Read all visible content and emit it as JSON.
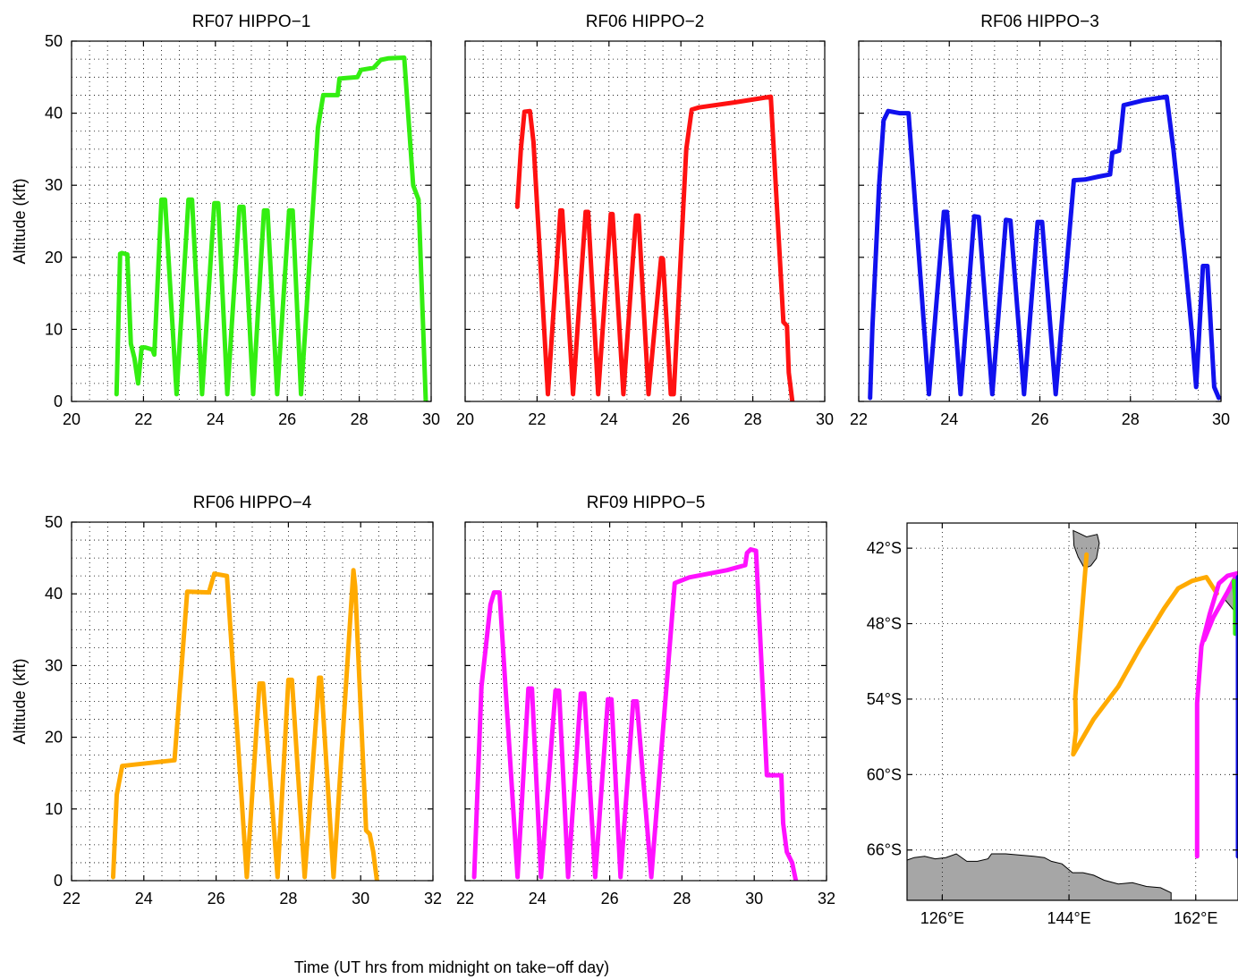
{
  "figure": {
    "xlabel": "Time (UT hrs from midnight on take−off day)"
  },
  "chart_data": [
    {
      "type": "line",
      "title": "RF07 HIPPO−1",
      "xlabel": "",
      "ylabel": "Altitude (kft)",
      "xlim": [
        20,
        30
      ],
      "ylim": [
        0,
        50
      ],
      "grid": true,
      "xticks": [
        "20",
        "22",
        "24",
        "26",
        "28",
        "30"
      ],
      "yticks": [
        "0",
        "10",
        "20",
        "30",
        "40",
        "50"
      ],
      "series": [
        {
          "color": "#33ee11",
          "x": [
            21.25,
            21.35,
            21.4,
            21.55,
            21.65,
            21.75,
            21.85,
            21.95,
            22.05,
            22.25,
            22.3,
            22.5,
            22.6,
            22.92,
            23.25,
            23.35,
            23.63,
            23.97,
            24.08,
            24.33,
            24.67,
            24.78,
            25.05,
            25.35,
            25.45,
            25.72,
            26.05,
            26.15,
            26.38,
            26.5,
            26.75,
            26.85,
            27.0,
            27.3,
            27.4,
            27.45,
            27.95,
            28.05,
            28.4,
            28.6,
            28.8,
            29.25,
            29.5,
            29.65,
            29.85
          ],
          "y": [
            1,
            20.5,
            20.6,
            20.4,
            8,
            6,
            2.5,
            7.5,
            7.5,
            7.2,
            6.5,
            28,
            28,
            1,
            28,
            28,
            1,
            27.5,
            27.5,
            1,
            27,
            27,
            1,
            26.5,
            26.5,
            1,
            26.5,
            26.5,
            1,
            10,
            30,
            38,
            42.5,
            42.5,
            42.5,
            44.8,
            45,
            46,
            46.3,
            47.4,
            47.6,
            47.7,
            30,
            28,
            0
          ]
        }
      ]
    },
    {
      "type": "line",
      "title": "RF06 HIPPO−2",
      "xlabel": "",
      "ylabel": "",
      "xlim": [
        20,
        30
      ],
      "ylim": [
        0,
        50
      ],
      "grid": true,
      "xticks": [
        "20",
        "22",
        "24",
        "26",
        "28",
        "30"
      ],
      "yticks": [],
      "series": [
        {
          "color": "#ff1111",
          "x": [
            21.45,
            21.55,
            21.65,
            21.8,
            21.9,
            22.3,
            22.65,
            22.7,
            23.0,
            23.35,
            23.42,
            23.7,
            24.05,
            24.1,
            24.4,
            24.75,
            24.82,
            25.1,
            25.45,
            25.5,
            25.72,
            25.8,
            26.15,
            26.3,
            26.5,
            27.5,
            28.5,
            28.85,
            28.95,
            29.0,
            29.05,
            29.1
          ],
          "y": [
            27,
            35,
            40.2,
            40.3,
            36,
            1,
            26.5,
            26.5,
            1,
            26.3,
            26.3,
            1,
            26,
            26,
            1,
            25.8,
            25.8,
            1,
            19.9,
            19.8,
            1,
            1,
            35,
            40.5,
            40.8,
            41.5,
            42.3,
            11,
            10.5,
            4,
            2,
            0
          ]
        }
      ]
    },
    {
      "type": "line",
      "title": "RF06 HIPPO−3",
      "xlabel": "",
      "ylabel": "",
      "xlim": [
        22,
        30
      ],
      "ylim": [
        0,
        50
      ],
      "grid": true,
      "xticks": [
        "22",
        "24",
        "26",
        "28",
        "30"
      ],
      "yticks": [],
      "series": [
        {
          "color": "#1111ee",
          "x": [
            22.25,
            22.3,
            22.45,
            22.55,
            22.65,
            22.9,
            23.1,
            23.55,
            23.88,
            23.95,
            24.25,
            24.55,
            24.65,
            24.95,
            25.25,
            25.35,
            25.65,
            25.95,
            26.05,
            26.35,
            26.75,
            27.0,
            27.3,
            27.55,
            27.6,
            27.75,
            27.85,
            28.3,
            28.8,
            28.95,
            29.2,
            29.35,
            29.45,
            29.6,
            29.7,
            29.85,
            29.95
          ],
          "y": [
            0.5,
            10,
            30,
            39,
            40.3,
            40,
            40,
            1,
            26.3,
            26.3,
            1,
            25.7,
            25.6,
            1,
            25.2,
            25.1,
            1,
            24.9,
            24.9,
            1,
            30.7,
            30.8,
            31.2,
            31.5,
            34.5,
            34.8,
            41.1,
            41.8,
            42.3,
            35,
            20,
            10,
            2,
            18.8,
            18.8,
            2,
            0.5
          ]
        }
      ]
    },
    {
      "type": "line",
      "title": "RF06 HIPPO−4",
      "xlabel": "",
      "ylabel": "Altitude (kft)",
      "xlim": [
        22,
        32
      ],
      "ylim": [
        0,
        50
      ],
      "grid": true,
      "xticks": [
        "22",
        "24",
        "26",
        "28",
        "30",
        "32"
      ],
      "yticks": [
        "0",
        "10",
        "20",
        "30",
        "40",
        "50"
      ],
      "series": [
        {
          "color": "#ffaa00",
          "x": [
            23.15,
            23.25,
            23.4,
            24.85,
            25.2,
            25.8,
            25.95,
            26.3,
            26.85,
            27.2,
            27.3,
            27.7,
            28.0,
            28.1,
            28.45,
            28.85,
            28.9,
            29.25,
            29.8,
            29.85,
            30.15,
            30.25,
            30.35,
            30.45
          ],
          "y": [
            0.5,
            12,
            16,
            16.8,
            40.3,
            40.2,
            42.8,
            42.5,
            0.5,
            27.5,
            27.5,
            0.5,
            28,
            28,
            0.5,
            28.3,
            28.3,
            0.5,
            43.3,
            41,
            7,
            6.5,
            4,
            0
          ]
        }
      ]
    },
    {
      "type": "line",
      "title": "RF09 HIPPO−5",
      "xlabel": "",
      "ylabel": "",
      "xlim": [
        22,
        32
      ],
      "ylim": [
        0,
        50
      ],
      "grid": true,
      "xticks": [
        "22",
        "24",
        "26",
        "28",
        "30",
        "32"
      ],
      "yticks": [],
      "series": [
        {
          "color": "#ff11ff",
          "x": [
            22.25,
            22.45,
            22.7,
            22.8,
            22.95,
            23.45,
            23.75,
            23.85,
            24.1,
            24.5,
            24.6,
            24.85,
            25.2,
            25.3,
            25.6,
            25.95,
            26.05,
            26.3,
            26.65,
            26.75,
            27.15,
            27.8,
            28.2,
            29.25,
            29.75,
            29.8,
            29.9,
            30.05,
            30.35,
            30.75,
            30.8,
            30.9,
            31.05,
            31.15
          ],
          "y": [
            0.5,
            27,
            38.5,
            40.2,
            40.2,
            0.5,
            26.8,
            26.8,
            0.5,
            26.5,
            26.5,
            0.5,
            26.1,
            26.1,
            0.5,
            25.3,
            25.3,
            0.5,
            25,
            25,
            0.5,
            41.5,
            42.3,
            43.3,
            44,
            45.7,
            46.2,
            46,
            14.7,
            14.7,
            8,
            4,
            2.5,
            0
          ]
        }
      ]
    },
    {
      "type": "map",
      "title": "",
      "xlabel": "",
      "ylabel": "",
      "xlim": [
        121,
        168
      ],
      "ylim": [
        -70,
        -40
      ],
      "grid": true,
      "xticks": [
        "126°E",
        "144°E",
        "162°E"
      ],
      "xtick_values": [
        126,
        144,
        162
      ],
      "yticks": [
        "42°S",
        "48°S",
        "54°S",
        "60°S",
        "66°S"
      ],
      "ytick_values": [
        -42,
        -48,
        -54,
        -60,
        -66
      ],
      "series": [
        {
          "color": "#ffaa00",
          "x": [
            146.5,
            144.9,
            145.0,
            144.6,
            147.5,
            151,
            154,
            157.5,
            159.5,
            161.5,
            163.5,
            165.0
          ],
          "y": [
            -42.5,
            -53.8,
            -56.5,
            -58.4,
            -55.6,
            -53,
            -50,
            -46.8,
            -45.2,
            -44.6,
            -44.3,
            -45.6
          ]
        },
        {
          "color": "#ff11ff",
          "x": [
            162.2,
            162.2,
            162.8,
            164.0,
            165.3,
            166.5,
            167.9,
            166.5,
            164.5,
            163.2
          ],
          "y": [
            -66.5,
            -54.3,
            -49.8,
            -47.2,
            -44.8,
            -44.2,
            -44.0,
            -45.5,
            -47.5,
            -49.3
          ]
        },
        {
          "color": "#33ee11",
          "x": [
            167.4,
            167.6,
            167.6
          ],
          "y": [
            -44.6,
            -45.8,
            -48.8
          ]
        },
        {
          "color": "#1111ee",
          "x": [
            168.0,
            168.0,
            168.0
          ],
          "y": [
            -44.3,
            -55.0,
            -66.5
          ]
        }
      ]
    }
  ]
}
